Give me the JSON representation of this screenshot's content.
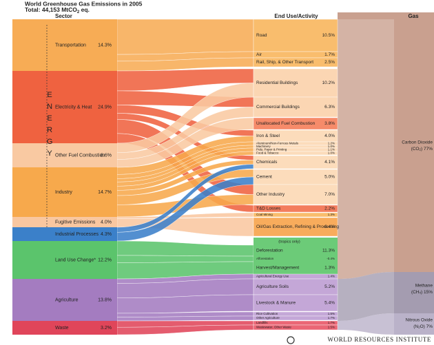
{
  "header": {
    "title": "World Greenhouse Gas Emissions in 2005",
    "total_pre": "Total: 44,153 MtCO",
    "total_sub": "2",
    "total_post": " eq."
  },
  "columns": {
    "sector": "Sector",
    "end_use": "End Use/Activity",
    "gas": "Gas"
  },
  "energy_label": "ENERGY",
  "sectors": [
    {
      "label": "Transportation",
      "value": "14.3%"
    },
    {
      "label": "Electricity & Heat",
      "value": "24.9%"
    },
    {
      "label": "Other Fuel Combustion",
      "value": "8.6%"
    },
    {
      "label": "Industry",
      "value": "14.7%"
    },
    {
      "label": "Fugitive Emissions",
      "value": "4.0%"
    },
    {
      "label": "Industrial Processes",
      "value": "4.3%"
    },
    {
      "label": "Land Use Change*",
      "value": "12.2%"
    },
    {
      "label": "Agriculture",
      "value": "13.8%"
    },
    {
      "label": "Waste",
      "value": "3.2%"
    }
  ],
  "end_uses": [
    {
      "label": "Road",
      "value": "10.5%"
    },
    {
      "label": "Air",
      "value": "1.7%"
    },
    {
      "label": "Rail, Ship, & Other Transport",
      "value": "2.5%"
    },
    {
      "label": "Residential Buildings",
      "value": "10.2%"
    },
    {
      "label": "Commercial Buildings",
      "value": "6.3%"
    },
    {
      "label": "Unallocated Fuel Combustion",
      "value": "3.8%"
    },
    {
      "label": "Iron & Steel",
      "value": "4.0%"
    },
    {
      "label": "Aluminum/Non-Ferrous Metals",
      "value": "1.2%"
    },
    {
      "label": "Machinery",
      "value": "1.0%"
    },
    {
      "label": "Pulp, Paper & Printing",
      "value": "1.1%"
    },
    {
      "label": "Food & Tobacco",
      "value": "1.0%"
    },
    {
      "label": "Chemicals",
      "value": "4.1%"
    },
    {
      "label": "Cement",
      "value": "5.0%"
    },
    {
      "label": "Other Industry",
      "value": "7.0%"
    },
    {
      "label": "T&D Losses",
      "value": "2.2%"
    },
    {
      "label": "Coal Mining",
      "value": "1.3%"
    },
    {
      "label": "Oil/Gas Extraction, Refining & Processing",
      "value": "6.4%"
    },
    {
      "label": "Deforestation",
      "value": "11.3%"
    },
    {
      "label": "Afforestation",
      "value": "-0.4%"
    },
    {
      "label": "Harvest/Management",
      "value": "1.3%"
    },
    {
      "label": "Agricultural Energy Use",
      "value": "1.4%"
    },
    {
      "label": "Agriculture Soils",
      "value": "5.2%"
    },
    {
      "label": "Livestock & Manure",
      "value": "5.4%"
    },
    {
      "label": "Rice Cultivation",
      "value": "1.5%"
    },
    {
      "label": "Other Agriculture",
      "value": "1.7%"
    },
    {
      "label": "Landfills",
      "value": "1.7%"
    },
    {
      "label": "Wastewater, Other Waste",
      "value": "1.5%"
    }
  ],
  "tropics_note": "(tropics only)",
  "gases": [
    {
      "name": "Carbon Dioxide",
      "pre": "(CO",
      "sub": "2",
      "post": ") 77%"
    },
    {
      "name": "Methane",
      "pre": "(CH",
      "sub": "4",
      "post": ") 15%"
    },
    {
      "name": "Nitrous Oxide",
      "pre": "(N",
      "sub": "2",
      "post": "O) 7%"
    }
  ],
  "footer": "WORLD RESOURCES INSTITUTE"
}
